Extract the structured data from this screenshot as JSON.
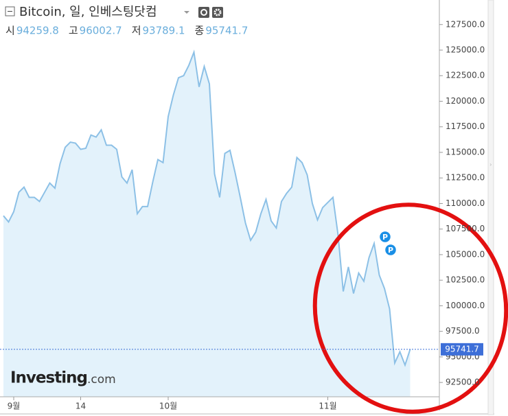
{
  "chart_data": {
    "type": "area",
    "title": "Bitcoin, 일, 인베스팅닷컴",
    "ohlc": [
      {
        "label": "시",
        "value": 94259.8
      },
      {
        "label": "고",
        "value": 96002.7
      },
      {
        "label": "저",
        "value": 93789.1
      },
      {
        "label": "종",
        "value": 95741.7
      }
    ],
    "categories": [
      null,
      null,
      "9월",
      null,
      null,
      null,
      null,
      null,
      null,
      null,
      null,
      null,
      null,
      null,
      null,
      "14",
      null,
      null,
      null,
      null,
      null,
      null,
      null,
      null,
      null,
      null,
      null,
      null,
      null,
      null,
      null,
      null,
      "10월",
      null,
      null,
      null,
      null,
      null,
      null,
      null,
      null,
      null,
      null,
      null,
      null,
      null,
      null,
      null,
      null,
      null,
      null,
      null,
      null,
      null,
      null,
      null,
      null,
      null,
      null,
      null,
      null,
      null,
      null,
      "11월",
      null,
      null,
      null,
      null,
      null,
      null,
      null,
      null,
      null,
      null,
      null,
      null,
      null,
      null,
      null,
      null
    ],
    "values": [
      108800,
      108200,
      109200,
      111100,
      111600,
      110600,
      110600,
      110200,
      111100,
      112000,
      111500,
      113900,
      115500,
      116000,
      115900,
      115300,
      115400,
      116700,
      116500,
      117200,
      115700,
      115700,
      115300,
      112600,
      112000,
      113300,
      109000,
      109700,
      109700,
      112100,
      114300,
      114000,
      118500,
      120600,
      122300,
      122500,
      123500,
      124800,
      121400,
      123400,
      121700,
      112900,
      110600,
      114900,
      115200,
      113000,
      110600,
      108100,
      106400,
      107200,
      109000,
      110400,
      108300,
      107600,
      110200,
      111000,
      111600,
      114500,
      114000,
      112800,
      110000,
      108400,
      109600,
      110100,
      110600,
      106900,
      101400,
      103800,
      101200,
      103200,
      102400,
      104700,
      106100,
      103000,
      101700,
      99700,
      94400,
      95500,
      94200,
      95741.7
    ],
    "line_color": "#8cc0e6",
    "fill_color": "#e3f2fb",
    "ylim": [
      91100,
      129900
    ],
    "yticks": [
      {
        "value": 92500,
        "label": "92500.0"
      },
      {
        "value": 95000,
        "label": "95000.0"
      },
      {
        "value": 97500,
        "label": "97500.0"
      },
      {
        "value": 100000,
        "label": "100000.0"
      },
      {
        "value": 102500,
        "label": "102500.0"
      },
      {
        "value": 105000,
        "label": "105000.0"
      },
      {
        "value": 107500,
        "label": "107500.0"
      },
      {
        "value": 110000,
        "label": "110000.0"
      },
      {
        "value": 112500,
        "label": "112500.0"
      },
      {
        "value": 115000,
        "label": "115000.0"
      },
      {
        "value": 117500,
        "label": "117500.0"
      },
      {
        "value": 120000,
        "label": "120000.0"
      },
      {
        "value": 122500,
        "label": "122500.0"
      },
      {
        "value": 125000,
        "label": "125000.0"
      },
      {
        "value": 127500,
        "label": "127500.0"
      }
    ],
    "annotations": [
      "P",
      "P"
    ],
    "watermark": [
      "Investing",
      ".com"
    ]
  }
}
